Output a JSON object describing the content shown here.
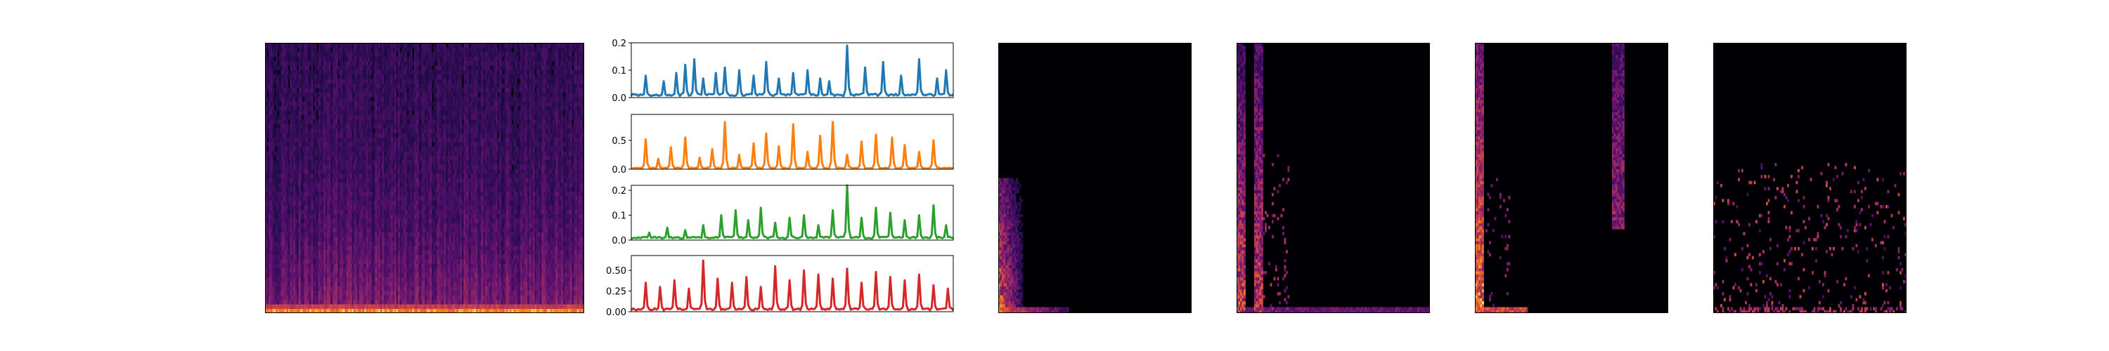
{
  "colors": {
    "colormap": "inferno",
    "line_series": [
      "#1f77b4",
      "#ff7f0e",
      "#2ca02c",
      "#d62728"
    ],
    "axis": "#000000",
    "background": "#000004"
  },
  "chart_data": [
    {
      "type": "heatmap",
      "id": "input_spectrogram",
      "colormap": "inferno",
      "frames": 180,
      "freq_bins": 60,
      "energy": "broadband, bright at lowest frequency bins across all frames",
      "ticks": "none"
    },
    {
      "type": "line",
      "id": "activation_1",
      "frames": 180,
      "ylim": [
        0,
        0.2
      ],
      "yticks": [
        "0.0",
        "0.1",
        "0.2"
      ],
      "peak_frames": [
        8,
        18,
        25,
        30,
        35,
        40,
        47,
        52,
        60,
        68,
        75,
        82,
        90,
        98,
        105,
        110,
        120,
        130,
        140,
        150,
        160,
        170,
        175
      ],
      "peak_values": [
        0.08,
        0.06,
        0.09,
        0.12,
        0.14,
        0.07,
        0.09,
        0.11,
        0.1,
        0.08,
        0.13,
        0.07,
        0.09,
        0.1,
        0.07,
        0.06,
        0.19,
        0.11,
        0.13,
        0.08,
        0.14,
        0.07,
        0.1
      ],
      "baseline": 0.01
    },
    {
      "type": "line",
      "id": "activation_2",
      "frames": 180,
      "ylim": [
        0,
        0.95
      ],
      "yticks": [
        "0.0",
        "0.5"
      ],
      "peak_frames": [
        8,
        15,
        22,
        30,
        38,
        45,
        52,
        60,
        68,
        75,
        82,
        90,
        98,
        105,
        112,
        120,
        128,
        136,
        145,
        152,
        160,
        168
      ],
      "peak_values": [
        0.52,
        0.18,
        0.38,
        0.55,
        0.2,
        0.35,
        0.82,
        0.25,
        0.45,
        0.62,
        0.4,
        0.78,
        0.3,
        0.58,
        0.82,
        0.25,
        0.48,
        0.6,
        0.55,
        0.42,
        0.3,
        0.5
      ],
      "baseline": 0.02
    },
    {
      "type": "line",
      "id": "activation_3",
      "frames": 180,
      "ylim": [
        0,
        0.22
      ],
      "yticks": [
        "0.0",
        "0.1",
        "0.2"
      ],
      "peak_frames": [
        10,
        20,
        30,
        40,
        50,
        58,
        65,
        72,
        80,
        88,
        96,
        104,
        112,
        120,
        128,
        136,
        144,
        152,
        160,
        168,
        175
      ],
      "peak_values": [
        0.03,
        0.05,
        0.04,
        0.06,
        0.1,
        0.12,
        0.08,
        0.13,
        0.07,
        0.09,
        0.1,
        0.06,
        0.12,
        0.22,
        0.09,
        0.13,
        0.11,
        0.08,
        0.1,
        0.14,
        0.06
      ],
      "baseline": 0.01
    },
    {
      "type": "line",
      "id": "activation_4",
      "frames": 180,
      "ylim": [
        0,
        0.68
      ],
      "yticks": [
        "0.00",
        "0.25",
        "0.50"
      ],
      "peak_frames": [
        8,
        16,
        24,
        32,
        40,
        48,
        56,
        64,
        72,
        80,
        88,
        96,
        104,
        112,
        120,
        128,
        136,
        144,
        152,
        160,
        168,
        176
      ],
      "peak_values": [
        0.35,
        0.3,
        0.38,
        0.28,
        0.62,
        0.4,
        0.35,
        0.42,
        0.3,
        0.55,
        0.38,
        0.5,
        0.45,
        0.4,
        0.52,
        0.35,
        0.48,
        0.42,
        0.38,
        0.45,
        0.32,
        0.28
      ],
      "baseline": 0.03
    },
    {
      "type": "heatmap",
      "id": "component_1",
      "colormap": "inferno",
      "energy": "low-frequency, concentrated near the left edge; bright bins at the bottom-left corner",
      "ticks": "none"
    },
    {
      "type": "heatmap",
      "id": "component_2",
      "colormap": "inferno",
      "energy": "two bright vertical bands near left edge, fading upward",
      "ticks": "none"
    },
    {
      "type": "heatmap",
      "id": "component_3",
      "colormap": "inferno",
      "energy": "bright vertical band at left edge and another at about 75% width",
      "ticks": "none"
    },
    {
      "type": "heatmap",
      "id": "component_4",
      "colormap": "inferno",
      "energy": "scattered sparse activations across time, mostly lower half",
      "ticks": "none"
    }
  ]
}
